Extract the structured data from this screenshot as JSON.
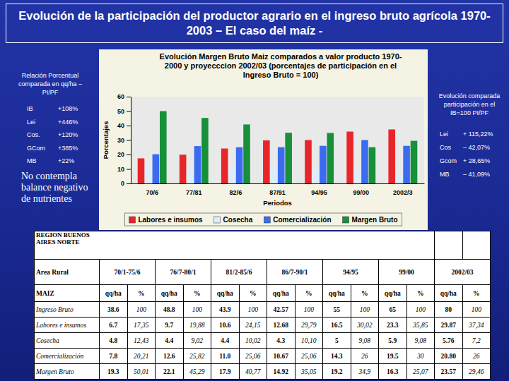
{
  "slide": {
    "title": "Evolución de la participación del productor agrario en el ingreso bruto agrícola 1970-2003 – El caso del maíz -",
    "left_note": {
      "heading": "Relación Porcentual comparada en qq/ha – PI/PF",
      "items": [
        {
          "label": "IB",
          "value": "+108%"
        },
        {
          "label": "Lei",
          "value": "+446%"
        },
        {
          "label": "Cos.",
          "value": "+120%"
        },
        {
          "label": "GCom",
          "value": "+385%"
        },
        {
          "label": "MB",
          "value": "+22%"
        }
      ]
    },
    "nutrients_note": "No contempla balance negativo de nutrientes",
    "right_note": {
      "heading": "Evolución comparada participación en el IB=100 PI/PF",
      "items": [
        {
          "label": "Lei",
          "value": "+ 115,22%"
        },
        {
          "label": "Cos",
          "value": "– 42,07%"
        },
        {
          "label": "Gcom",
          "value": "+ 28,65%"
        },
        {
          "label": "MB",
          "value": "– 41,09%"
        }
      ]
    }
  },
  "chart_data": {
    "type": "bar",
    "title": "Evolución Margen Bruto Maiz comparados a valor producto 1970-2000 y proyecccion 2002/03 (porcentajes de participación en el Ingreso Bruto = 100)",
    "x_label": "Periodos",
    "y_label": "Porcentajes",
    "categories": [
      "70/6",
      "77/81",
      "82/6",
      "87/91",
      "94/95",
      "99/00",
      "2002/3"
    ],
    "series": [
      {
        "name": "Labores e insumos",
        "color": "#e8262a",
        "values": [
          17.35,
          19.88,
          24.15,
          29.79,
          30.02,
          35.85,
          37.34
        ]
      },
      {
        "name": "Cosecha",
        "color": "#dcedfb",
        "values": [
          12.43,
          9.02,
          10.02,
          10.1,
          9.08,
          9.08,
          7.2
        ]
      },
      {
        "name": "Comercialización",
        "color": "#3b6cf0",
        "values": [
          20.21,
          25.82,
          25.06,
          25.06,
          26,
          30,
          26
        ]
      },
      {
        "name": "Margen Bruto",
        "color": "#17903a",
        "values": [
          50.01,
          45.29,
          40.77,
          35.05,
          34.9,
          25.07,
          29.46
        ]
      }
    ],
    "ylim": [
      0,
      60
    ],
    "yticks": [
      0,
      10,
      20,
      30,
      40,
      50,
      60
    ],
    "grid": false,
    "legend": "bottom"
  },
  "table": {
    "region": "REGION BUENOS AIRES NORTE",
    "header": [
      "Area Rural",
      "70/1-75/6",
      "76/7-80/1",
      "81/2-85/6",
      "86/7-90/1",
      "94/95",
      "99/00",
      "2002/03"
    ],
    "subheader": [
      "MAIZ",
      "qq/ha",
      "%",
      "qq/ha",
      "%",
      "qq/ha",
      "%",
      "qq/ha",
      "%",
      "qq/ha",
      "%",
      "qq/ha",
      "%",
      "qq/ha",
      "%"
    ],
    "rows": [
      [
        "Ingreso Bruto",
        "38.6",
        "100",
        "48.8",
        "100",
        "43.9",
        "100",
        "42.57",
        "100",
        "55",
        "100",
        "65",
        "100",
        "80",
        "100"
      ],
      [
        "Labores e insumos",
        "6.7",
        "17,35",
        "9.7",
        "19,88",
        "10.6",
        "24,15",
        "12.68",
        "29,79",
        "16.5",
        "30,02",
        "23.3",
        "35,85",
        "29.87",
        "37,34"
      ],
      [
        "Cosecha",
        "4.8",
        "12,43",
        "4.4",
        "9,02",
        "4.4",
        "10,02",
        "4.3",
        "10,10",
        "5",
        "9,08",
        "5.9",
        "9,08",
        "5.76",
        "7,2"
      ],
      [
        "Comercialización",
        "7.8",
        "20,21",
        "12.6",
        "25,82",
        "11.0",
        "25,06",
        "10.67",
        "25,06",
        "14.3",
        "26",
        "19.5",
        "30",
        "20.80",
        "26"
      ],
      [
        "Margen Bruto",
        "19.3",
        "50,01",
        "22.1",
        "45,29",
        "17.9",
        "40,77",
        "14.92",
        "35,05",
        "19.2",
        "34,9",
        "16.3",
        "25,07",
        "23.57",
        "29,46"
      ]
    ]
  }
}
